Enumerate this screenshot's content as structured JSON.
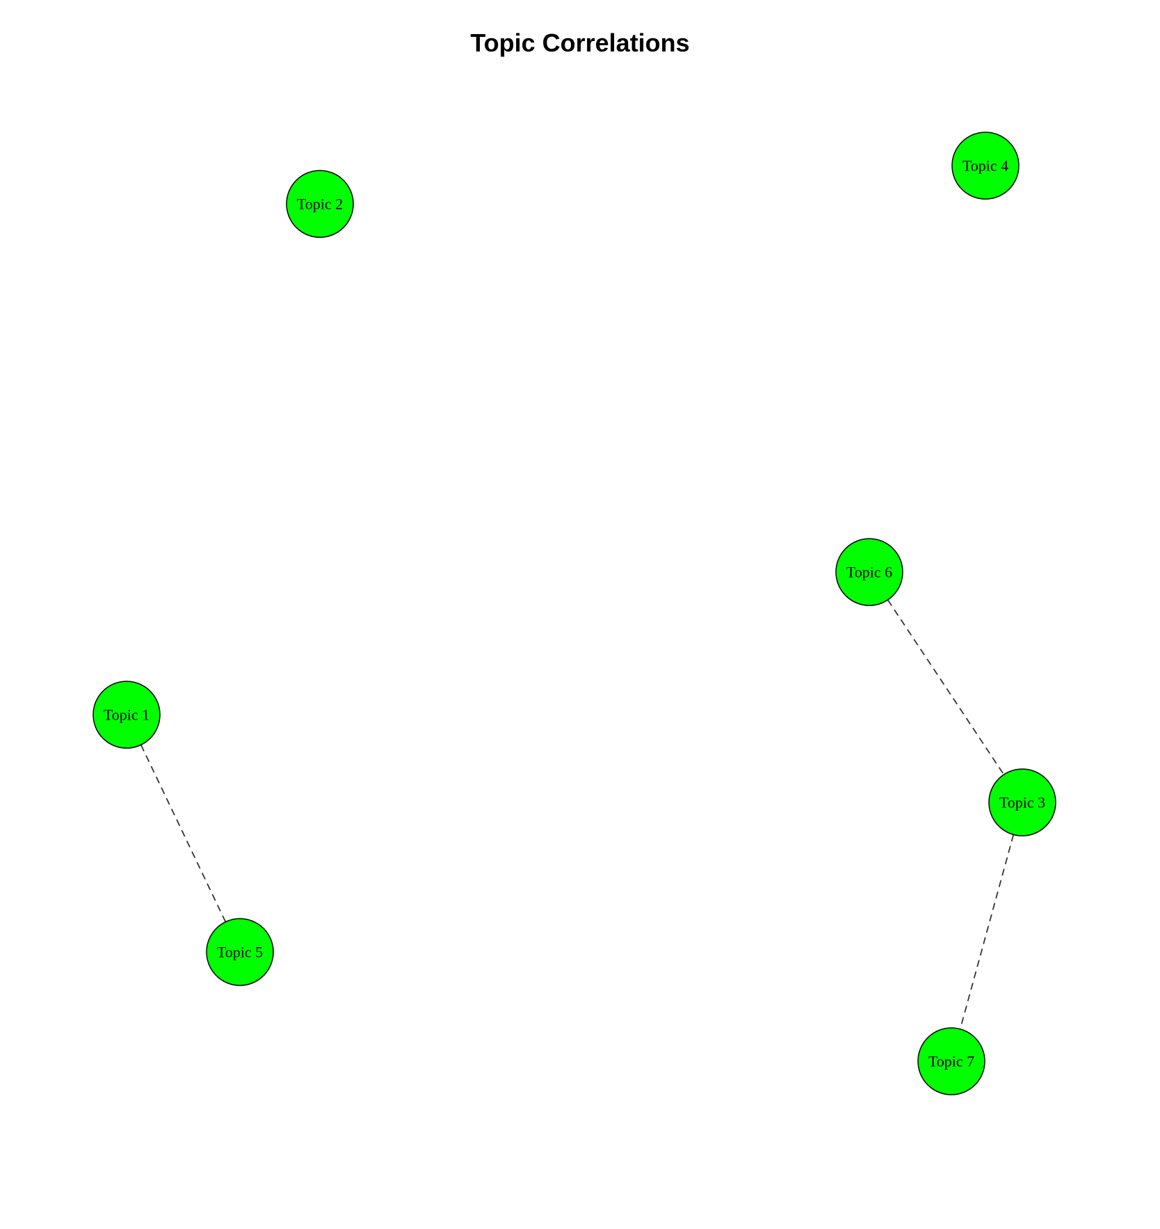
{
  "title": "Topic Correlations",
  "colors": {
    "node_fill": "#00ff00",
    "node_stroke": "#000000",
    "edge": "#333333"
  },
  "nodes": [
    {
      "id": "topic-1",
      "label": "Topic 1"
    },
    {
      "id": "topic-2",
      "label": "Topic 2"
    },
    {
      "id": "topic-3",
      "label": "Topic 3"
    },
    {
      "id": "topic-4",
      "label": "Topic 4"
    },
    {
      "id": "topic-5",
      "label": "Topic 5"
    },
    {
      "id": "topic-6",
      "label": "Topic 6"
    },
    {
      "id": "topic-7",
      "label": "Topic 7"
    }
  ],
  "edges": [
    {
      "from": "topic-1",
      "to": "topic-5",
      "style": "dashed"
    },
    {
      "from": "topic-6",
      "to": "topic-3",
      "style": "dashed"
    },
    {
      "from": "topic-3",
      "to": "topic-7",
      "style": "dashed"
    }
  ]
}
